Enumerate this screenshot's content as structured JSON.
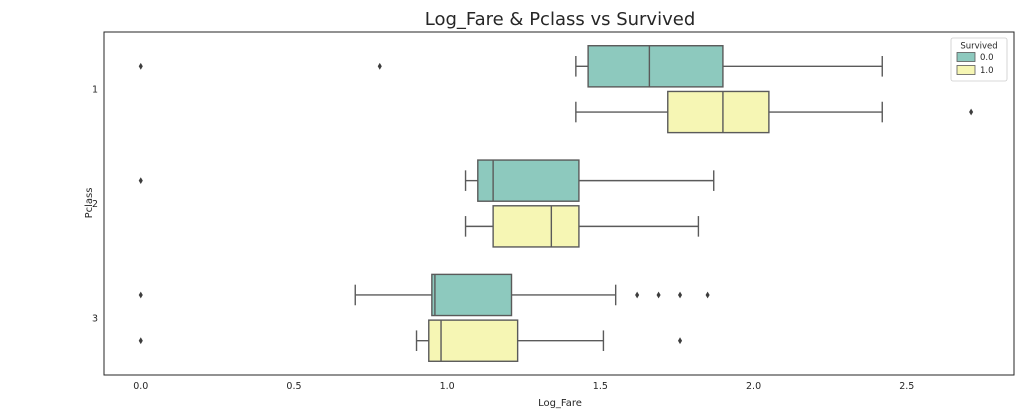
{
  "chart_data": {
    "type": "boxplot",
    "orientation": "horizontal",
    "title": "Log_Fare & Pclass vs Survived",
    "xlabel": "Log_Fare",
    "ylabel": "Pclass",
    "xlim": [
      -0.12,
      2.85
    ],
    "x_ticks": [
      "0.0",
      "0.5",
      "1.0",
      "1.5",
      "2.0",
      "2.5"
    ],
    "x_tick_values": [
      0.0,
      0.5,
      1.0,
      1.5,
      2.0,
      2.5
    ],
    "categories": [
      "1",
      "2",
      "3"
    ],
    "legend": {
      "title": "Survived",
      "placement": "top-right",
      "entries": [
        {
          "label": "0.0",
          "color": "#8dc9be"
        },
        {
          "label": "1.0",
          "color": "#f6f6b4"
        }
      ]
    },
    "series": [
      {
        "name": "0.0",
        "color": "#8dc9be",
        "boxes": [
          {
            "category": "1",
            "whisker_low": 1.42,
            "q1": 1.46,
            "median": 1.66,
            "q3": 1.9,
            "whisker_high": 2.42,
            "outliers": [
              0.0,
              0.78
            ]
          },
          {
            "category": "2",
            "whisker_low": 1.06,
            "q1": 1.1,
            "median": 1.15,
            "q3": 1.43,
            "whisker_high": 1.87,
            "outliers": [
              0.0
            ]
          },
          {
            "category": "3",
            "whisker_low": 0.7,
            "q1": 0.95,
            "median": 0.96,
            "q3": 1.21,
            "whisker_high": 1.55,
            "outliers": [
              0.0,
              1.62,
              1.69,
              1.76,
              1.85
            ]
          }
        ]
      },
      {
        "name": "1.0",
        "color": "#f6f6b4",
        "boxes": [
          {
            "category": "1",
            "whisker_low": 1.42,
            "q1": 1.72,
            "median": 1.9,
            "q3": 2.05,
            "whisker_high": 2.42,
            "outliers": [
              2.71
            ]
          },
          {
            "category": "2",
            "whisker_low": 1.06,
            "q1": 1.15,
            "median": 1.34,
            "q3": 1.43,
            "whisker_high": 1.82,
            "outliers": []
          },
          {
            "category": "3",
            "whisker_low": 0.9,
            "q1": 0.94,
            "median": 0.98,
            "q3": 1.23,
            "whisker_high": 1.51,
            "outliers": [
              0.0,
              1.76
            ]
          }
        ]
      }
    ]
  }
}
